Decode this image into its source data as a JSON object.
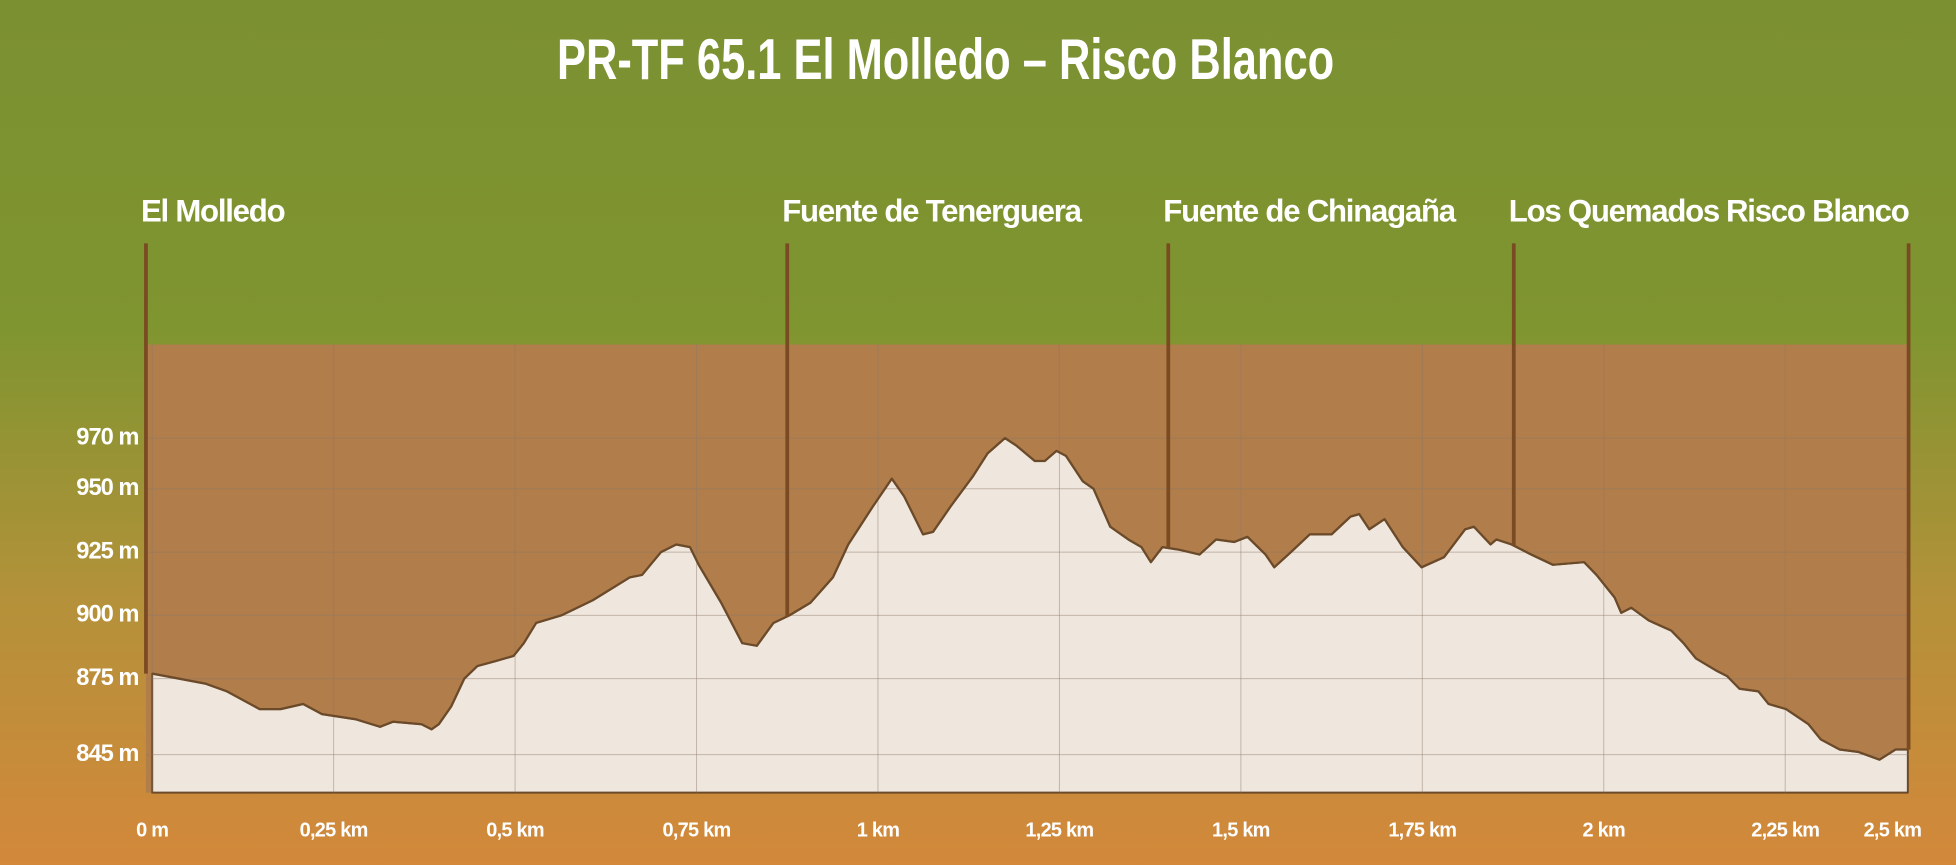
{
  "chart_data": {
    "type": "area",
    "title": "PR-TF 65.1 El Molledo – Risco Blanco",
    "x": [
      0,
      0.074,
      0.103,
      0.148,
      0.177,
      0.208,
      0.234,
      0.28,
      0.314,
      0.332,
      0.371,
      0.385,
      0.395,
      0.412,
      0.43,
      0.448,
      0.474,
      0.498,
      0.512,
      0.529,
      0.564,
      0.607,
      0.658,
      0.675,
      0.701,
      0.722,
      0.741,
      0.753,
      0.784,
      0.813,
      0.833,
      0.856,
      0.878,
      0.907,
      0.938,
      0.959,
      0.993,
      1.019,
      1.036,
      1.062,
      1.076,
      1.1,
      1.131,
      1.151,
      1.175,
      1.191,
      1.216,
      1.23,
      1.246,
      1.259,
      1.282,
      1.297,
      1.32,
      1.345,
      1.363,
      1.376,
      1.392,
      1.414,
      1.443,
      1.466,
      1.491,
      1.509,
      1.534,
      1.546,
      1.569,
      1.595,
      1.625,
      1.651,
      1.663,
      1.677,
      1.698,
      1.723,
      1.749,
      1.78,
      1.809,
      1.821,
      1.844,
      1.852,
      1.873,
      1.9,
      1.93,
      1.973,
      1.99,
      2.015,
      2.024,
      2.038,
      2.062,
      2.093,
      2.11,
      2.127,
      2.156,
      2.17,
      2.187,
      2.213,
      2.227,
      2.251,
      2.282,
      2.299,
      2.325,
      2.351,
      2.38,
      2.402,
      2.419
    ],
    "values": [
      877,
      873,
      870,
      863,
      863,
      865,
      861,
      859,
      856,
      858,
      857,
      855,
      857,
      864,
      875,
      880,
      882,
      884,
      889,
      897,
      900,
      906,
      915,
      916,
      925,
      928,
      927,
      920,
      905,
      889,
      888,
      897,
      900,
      905,
      915,
      928,
      943,
      954,
      947,
      932,
      933,
      943,
      955,
      964,
      970,
      967,
      961,
      961,
      965,
      963,
      953,
      950,
      935,
      930,
      927,
      921,
      927,
      926,
      924,
      930,
      929,
      931,
      924,
      919,
      925,
      932,
      932,
      939,
      940,
      934,
      938,
      927,
      919,
      923,
      934,
      935,
      928,
      930,
      928,
      924,
      920,
      921,
      916,
      907,
      901,
      903,
      898,
      894,
      889,
      883,
      878,
      876,
      871,
      870,
      865,
      863,
      857,
      851,
      847,
      846,
      843,
      847,
      847
    ],
    "color": "#efe6dd",
    "line_color": "#6b4a2a",
    "plot_color": "#b07d4b",
    "grid": true,
    "xlim": [
      0,
      2.42
    ],
    "ylim": [
      830,
      1007
    ],
    "xticks": [
      {
        "value": 0,
        "label": "0 m"
      },
      {
        "value": 0.25,
        "label": "0,25 km"
      },
      {
        "value": 0.5,
        "label": "0,5 km"
      },
      {
        "value": 0.75,
        "label": "0,75 km"
      },
      {
        "value": 1,
        "label": "1 km"
      },
      {
        "value": 1.25,
        "label": "1,25 km"
      },
      {
        "value": 1.5,
        "label": "1,5 km"
      },
      {
        "value": 1.75,
        "label": "1,75 km"
      },
      {
        "value": 2,
        "label": "2 km"
      },
      {
        "value": 2.25,
        "label": "2,25 km"
      },
      {
        "value": 2.5,
        "label": "2,5 km"
      }
    ],
    "yticks": [
      {
        "value": 845,
        "label": "845 m"
      },
      {
        "value": 875,
        "label": "875 m"
      },
      {
        "value": 900,
        "label": "900 m"
      },
      {
        "value": 925,
        "label": "925 m"
      },
      {
        "value": 950,
        "label": "950 m"
      },
      {
        "value": 970,
        "label": "970 m"
      }
    ],
    "waypoints": [
      {
        "label": "El Molledo",
        "x": 0
      },
      {
        "label": "Fuente de Tenerguera",
        "x": 0.875
      },
      {
        "label": "Fuente de Chinagaña",
        "x": 1.4
      },
      {
        "label": "Los Quemados",
        "x": 1.876
      },
      {
        "label": "Risco Blanco",
        "x": 2.42
      }
    ]
  }
}
